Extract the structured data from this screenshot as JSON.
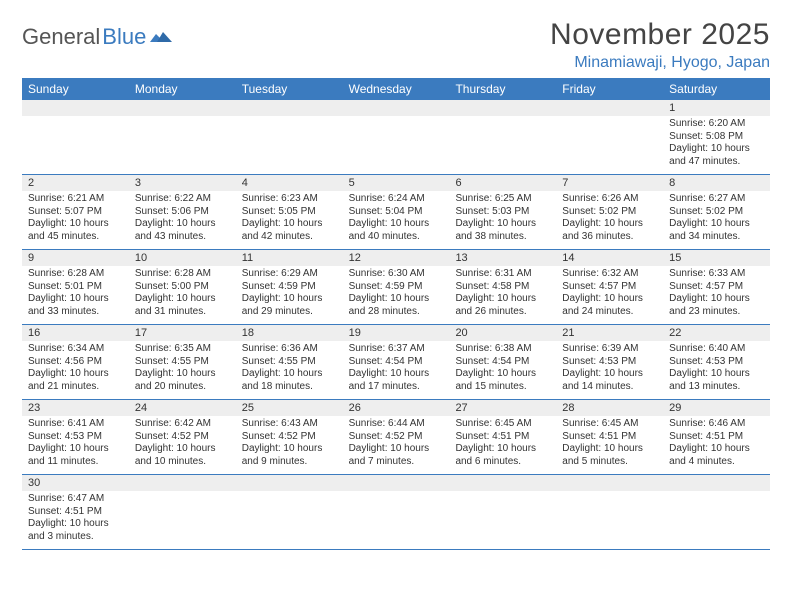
{
  "colors": {
    "header_bg": "#3b7bbf",
    "header_text": "#ffffff",
    "daynum_bg": "#eeeeee",
    "border": "#3b7bbf",
    "text": "#333333",
    "logo_gray": "#555555",
    "logo_blue": "#3b7bbf"
  },
  "logo": {
    "part1": "General",
    "part2": "Blue"
  },
  "title": "November 2025",
  "location": "Minamiawaji, Hyogo, Japan",
  "day_headers": [
    "Sunday",
    "Monday",
    "Tuesday",
    "Wednesday",
    "Thursday",
    "Friday",
    "Saturday"
  ],
  "weeks": [
    [
      null,
      null,
      null,
      null,
      null,
      null,
      {
        "n": "1",
        "sr": "Sunrise: 6:20 AM",
        "ss": "Sunset: 5:08 PM",
        "d1": "Daylight: 10 hours",
        "d2": "and 47 minutes."
      }
    ],
    [
      {
        "n": "2",
        "sr": "Sunrise: 6:21 AM",
        "ss": "Sunset: 5:07 PM",
        "d1": "Daylight: 10 hours",
        "d2": "and 45 minutes."
      },
      {
        "n": "3",
        "sr": "Sunrise: 6:22 AM",
        "ss": "Sunset: 5:06 PM",
        "d1": "Daylight: 10 hours",
        "d2": "and 43 minutes."
      },
      {
        "n": "4",
        "sr": "Sunrise: 6:23 AM",
        "ss": "Sunset: 5:05 PM",
        "d1": "Daylight: 10 hours",
        "d2": "and 42 minutes."
      },
      {
        "n": "5",
        "sr": "Sunrise: 6:24 AM",
        "ss": "Sunset: 5:04 PM",
        "d1": "Daylight: 10 hours",
        "d2": "and 40 minutes."
      },
      {
        "n": "6",
        "sr": "Sunrise: 6:25 AM",
        "ss": "Sunset: 5:03 PM",
        "d1": "Daylight: 10 hours",
        "d2": "and 38 minutes."
      },
      {
        "n": "7",
        "sr": "Sunrise: 6:26 AM",
        "ss": "Sunset: 5:02 PM",
        "d1": "Daylight: 10 hours",
        "d2": "and 36 minutes."
      },
      {
        "n": "8",
        "sr": "Sunrise: 6:27 AM",
        "ss": "Sunset: 5:02 PM",
        "d1": "Daylight: 10 hours",
        "d2": "and 34 minutes."
      }
    ],
    [
      {
        "n": "9",
        "sr": "Sunrise: 6:28 AM",
        "ss": "Sunset: 5:01 PM",
        "d1": "Daylight: 10 hours",
        "d2": "and 33 minutes."
      },
      {
        "n": "10",
        "sr": "Sunrise: 6:28 AM",
        "ss": "Sunset: 5:00 PM",
        "d1": "Daylight: 10 hours",
        "d2": "and 31 minutes."
      },
      {
        "n": "11",
        "sr": "Sunrise: 6:29 AM",
        "ss": "Sunset: 4:59 PM",
        "d1": "Daylight: 10 hours",
        "d2": "and 29 minutes."
      },
      {
        "n": "12",
        "sr": "Sunrise: 6:30 AM",
        "ss": "Sunset: 4:59 PM",
        "d1": "Daylight: 10 hours",
        "d2": "and 28 minutes."
      },
      {
        "n": "13",
        "sr": "Sunrise: 6:31 AM",
        "ss": "Sunset: 4:58 PM",
        "d1": "Daylight: 10 hours",
        "d2": "and 26 minutes."
      },
      {
        "n": "14",
        "sr": "Sunrise: 6:32 AM",
        "ss": "Sunset: 4:57 PM",
        "d1": "Daylight: 10 hours",
        "d2": "and 24 minutes."
      },
      {
        "n": "15",
        "sr": "Sunrise: 6:33 AM",
        "ss": "Sunset: 4:57 PM",
        "d1": "Daylight: 10 hours",
        "d2": "and 23 minutes."
      }
    ],
    [
      {
        "n": "16",
        "sr": "Sunrise: 6:34 AM",
        "ss": "Sunset: 4:56 PM",
        "d1": "Daylight: 10 hours",
        "d2": "and 21 minutes."
      },
      {
        "n": "17",
        "sr": "Sunrise: 6:35 AM",
        "ss": "Sunset: 4:55 PM",
        "d1": "Daylight: 10 hours",
        "d2": "and 20 minutes."
      },
      {
        "n": "18",
        "sr": "Sunrise: 6:36 AM",
        "ss": "Sunset: 4:55 PM",
        "d1": "Daylight: 10 hours",
        "d2": "and 18 minutes."
      },
      {
        "n": "19",
        "sr": "Sunrise: 6:37 AM",
        "ss": "Sunset: 4:54 PM",
        "d1": "Daylight: 10 hours",
        "d2": "and 17 minutes."
      },
      {
        "n": "20",
        "sr": "Sunrise: 6:38 AM",
        "ss": "Sunset: 4:54 PM",
        "d1": "Daylight: 10 hours",
        "d2": "and 15 minutes."
      },
      {
        "n": "21",
        "sr": "Sunrise: 6:39 AM",
        "ss": "Sunset: 4:53 PM",
        "d1": "Daylight: 10 hours",
        "d2": "and 14 minutes."
      },
      {
        "n": "22",
        "sr": "Sunrise: 6:40 AM",
        "ss": "Sunset: 4:53 PM",
        "d1": "Daylight: 10 hours",
        "d2": "and 13 minutes."
      }
    ],
    [
      {
        "n": "23",
        "sr": "Sunrise: 6:41 AM",
        "ss": "Sunset: 4:53 PM",
        "d1": "Daylight: 10 hours",
        "d2": "and 11 minutes."
      },
      {
        "n": "24",
        "sr": "Sunrise: 6:42 AM",
        "ss": "Sunset: 4:52 PM",
        "d1": "Daylight: 10 hours",
        "d2": "and 10 minutes."
      },
      {
        "n": "25",
        "sr": "Sunrise: 6:43 AM",
        "ss": "Sunset: 4:52 PM",
        "d1": "Daylight: 10 hours",
        "d2": "and 9 minutes."
      },
      {
        "n": "26",
        "sr": "Sunrise: 6:44 AM",
        "ss": "Sunset: 4:52 PM",
        "d1": "Daylight: 10 hours",
        "d2": "and 7 minutes."
      },
      {
        "n": "27",
        "sr": "Sunrise: 6:45 AM",
        "ss": "Sunset: 4:51 PM",
        "d1": "Daylight: 10 hours",
        "d2": "and 6 minutes."
      },
      {
        "n": "28",
        "sr": "Sunrise: 6:45 AM",
        "ss": "Sunset: 4:51 PM",
        "d1": "Daylight: 10 hours",
        "d2": "and 5 minutes."
      },
      {
        "n": "29",
        "sr": "Sunrise: 6:46 AM",
        "ss": "Sunset: 4:51 PM",
        "d1": "Daylight: 10 hours",
        "d2": "and 4 minutes."
      }
    ],
    [
      {
        "n": "30",
        "sr": "Sunrise: 6:47 AM",
        "ss": "Sunset: 4:51 PM",
        "d1": "Daylight: 10 hours",
        "d2": "and 3 minutes."
      },
      null,
      null,
      null,
      null,
      null,
      null
    ]
  ]
}
